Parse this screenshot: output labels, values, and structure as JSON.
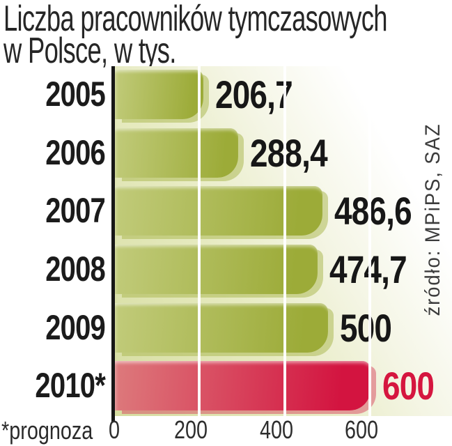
{
  "title": {
    "line1": "Liczba pracowników tymczasowych",
    "line2": "w Polsce, w tys."
  },
  "footnote": "*prognoza",
  "source": "źródło: MPiPS, SAZ",
  "chart_data": {
    "type": "bar",
    "orientation": "horizontal",
    "title": "Liczba pracowników tymczasowych w Polsce, w tys.",
    "categories": [
      "2005",
      "2006",
      "2007",
      "2008",
      "2009",
      "2010*"
    ],
    "values": [
      206.7,
      288.4,
      486.6,
      474.7,
      500,
      600
    ],
    "value_labels": [
      "206,7",
      "288,4",
      "486,6",
      "474,7",
      "500",
      "600"
    ],
    "highlight_index": 5,
    "highlight_note": "2010 bar is a forecast (*prognoza), drawn in red",
    "xlim": [
      0,
      600
    ],
    "x_ticks": [
      0,
      200,
      400,
      600
    ],
    "x_tick_labels": [
      "0",
      "200",
      "400",
      "600"
    ],
    "grid": true,
    "gridline_color": "#ffffff",
    "legend": false
  },
  "colors": {
    "bar_green_start": "#c1cb7a",
    "bar_green_end": "#9cab38",
    "bar_green_echo": "rgba(173,186,86,0.55)",
    "bar_red_start": "#dd7a7c",
    "bar_red_end": "#d31440",
    "bar_red_echo": "rgba(216,70,95,0.5)",
    "value_text": "#171717",
    "value_text_highlight": "#d5163f",
    "year_text": "#1b1b1b",
    "tick_text": "#2e2e2e",
    "title_text": "#262626",
    "source_text": "#3c3c3c",
    "axis_line": "#161616",
    "plot_bg_start": "#d5dc9f",
    "plot_bg_end": "#ffffff"
  }
}
